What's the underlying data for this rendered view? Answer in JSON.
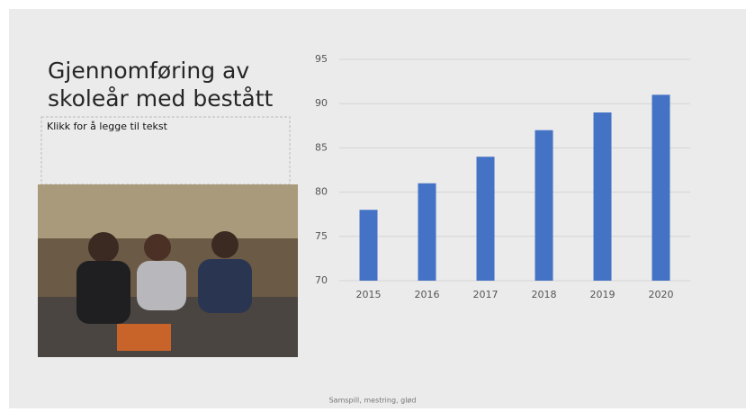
{
  "slide": {
    "title_lines": [
      "Gjennomføring av",
      "skoleår med bestått"
    ],
    "placeholder": "Klikk for å legge til tekst",
    "footer": "Samspill, mestring, glød"
  },
  "chart_data": {
    "type": "bar",
    "categories": [
      "2015",
      "2016",
      "2017",
      "2018",
      "2019",
      "2020"
    ],
    "values": [
      78,
      81,
      84,
      87,
      89,
      91
    ],
    "color": "#4472c4",
    "ylim": [
      70,
      95
    ],
    "yticks": [
      70,
      75,
      80,
      85,
      90,
      95
    ],
    "grid": true
  }
}
